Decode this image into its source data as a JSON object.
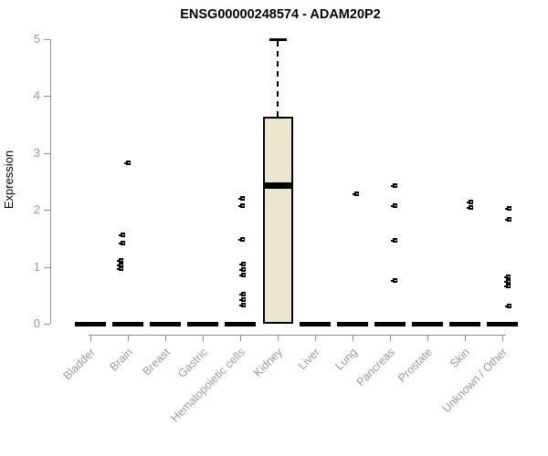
{
  "chart_data": {
    "type": "boxplot",
    "title": "ENSG00000248574 - ADAM20P2",
    "ylabel": "Expression",
    "xlabel": "",
    "ylim": [
      0,
      5
    ],
    "yticks": [
      0,
      1,
      2,
      3,
      4,
      5
    ],
    "grid": false,
    "legend": "none",
    "categories": [
      "Bladder",
      "Brain",
      "Breast",
      "Gastric",
      "Hematopoietic cells",
      "Kidney",
      "Liver",
      "Lung",
      "Pancreas",
      "Prostate",
      "Skin",
      "Unknown / Other"
    ],
    "boxes": [
      {
        "category": "Bladder",
        "q1": 0,
        "median": 0,
        "q3": 0,
        "whisker_low": 0,
        "whisker_high": 0,
        "points": []
      },
      {
        "category": "Brain",
        "q1": 0,
        "median": 0,
        "q3": 0,
        "whisker_low": 0,
        "whisker_high": 0,
        "points": [
          {
            "v": 2.84,
            "dx": 0
          },
          {
            "v": 1.57,
            "dx": -6
          },
          {
            "v": 1.43,
            "dx": -6
          },
          {
            "v": 1.12,
            "dx": -8
          },
          {
            "v": 1.04,
            "dx": -8
          },
          {
            "v": 0.98,
            "dx": -8
          }
        ]
      },
      {
        "category": "Breast",
        "q1": 0,
        "median": 0,
        "q3": 0,
        "whisker_low": 0,
        "whisker_high": 0,
        "points": []
      },
      {
        "category": "Gastric",
        "q1": 0,
        "median": 0,
        "q3": 0,
        "whisker_low": 0,
        "whisker_high": 0,
        "points": []
      },
      {
        "category": "Hematopoietic cells",
        "q1": 0,
        "median": 0,
        "q3": 0,
        "whisker_low": 0,
        "whisker_high": 0,
        "points": [
          {
            "v": 2.21,
            "dx": 2
          },
          {
            "v": 2.08,
            "dx": 2
          },
          {
            "v": 1.49,
            "dx": 2
          },
          {
            "v": 1.06,
            "dx": 3
          },
          {
            "v": 0.96,
            "dx": 3
          },
          {
            "v": 0.87,
            "dx": 3
          },
          {
            "v": 0.53,
            "dx": 3
          },
          {
            "v": 0.43,
            "dx": 3
          },
          {
            "v": 0.34,
            "dx": 3
          }
        ]
      },
      {
        "category": "Kidney",
        "q1": 0,
        "median": 2.43,
        "q3": 3.63,
        "whisker_low": 0,
        "whisker_high": 5.0,
        "points": []
      },
      {
        "category": "Liver",
        "q1": 0,
        "median": 0,
        "q3": 0,
        "whisker_low": 0,
        "whisker_high": 0,
        "points": []
      },
      {
        "category": "Lung",
        "q1": 0,
        "median": 0,
        "q3": 0,
        "whisker_low": 0,
        "whisker_high": 0,
        "points": [
          {
            "v": 2.29,
            "dx": 4
          }
        ]
      },
      {
        "category": "Pancreas",
        "q1": 0,
        "median": 0,
        "q3": 0,
        "whisker_low": 0,
        "whisker_high": 0,
        "points": [
          {
            "v": 2.44,
            "dx": 5
          },
          {
            "v": 2.08,
            "dx": 5
          },
          {
            "v": 1.47,
            "dx": 5
          },
          {
            "v": 0.77,
            "dx": 5
          }
        ]
      },
      {
        "category": "Prostate",
        "q1": 0,
        "median": 0,
        "q3": 0,
        "whisker_low": 0,
        "whisker_high": 0,
        "points": []
      },
      {
        "category": "Skin",
        "q1": 0,
        "median": 0,
        "q3": 0,
        "whisker_low": 0,
        "whisker_high": 0,
        "points": [
          {
            "v": 2.15,
            "dx": 6
          },
          {
            "v": 2.05,
            "dx": 6
          }
        ]
      },
      {
        "category": "Unknown / Other",
        "q1": 0,
        "median": 0,
        "q3": 0,
        "whisker_low": 0,
        "whisker_high": 0,
        "points": [
          {
            "v": 2.04,
            "dx": 7
          },
          {
            "v": 1.84,
            "dx": 7
          },
          {
            "v": 0.83,
            "dx": 6
          },
          {
            "v": 0.75,
            "dx": 6
          },
          {
            "v": 0.67,
            "dx": 6
          },
          {
            "v": 0.32,
            "dx": 7
          }
        ]
      }
    ],
    "colors": {
      "box_fill": "#EBE6CD",
      "box_border": "#000000",
      "median": "#000000",
      "zero_bar": "#000000",
      "point": "#000000",
      "whisker": "#000000",
      "axis_line": "#8e8e8e",
      "tick_label": "#9a9a9a",
      "title": "#000000",
      "background": "#ffffff"
    }
  }
}
